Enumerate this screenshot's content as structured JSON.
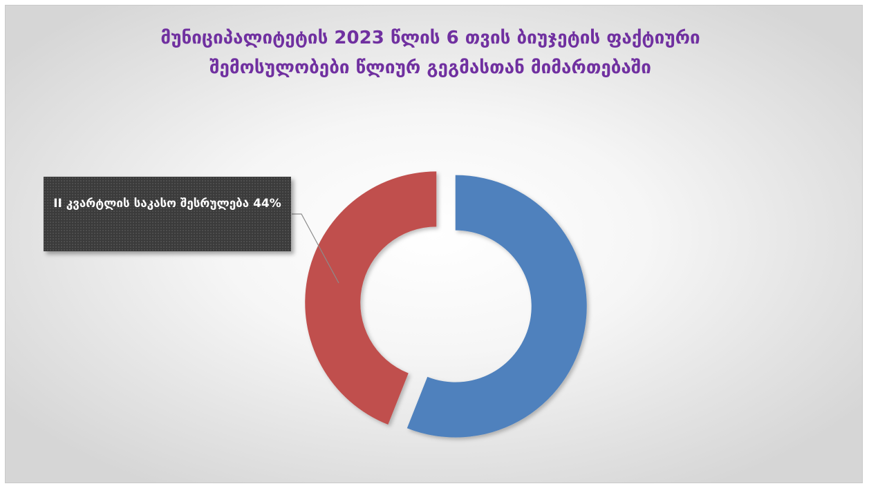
{
  "chart_data": {
    "type": "pie",
    "style": "doughnut",
    "title": "მუნიციპალიტეტის 2023 წლის 6 თვის ბიუჯეტის ფაქტიური შემოსულობები წლიურ გეგმასთან მიმართებაში",
    "slices": [
      {
        "value": 56,
        "color": "#4f81bd",
        "label": ""
      },
      {
        "value": 44,
        "color": "#c0504d",
        "label": "II კვარტლის საკასო შესრულება 44%"
      }
    ],
    "legend": "none"
  }
}
